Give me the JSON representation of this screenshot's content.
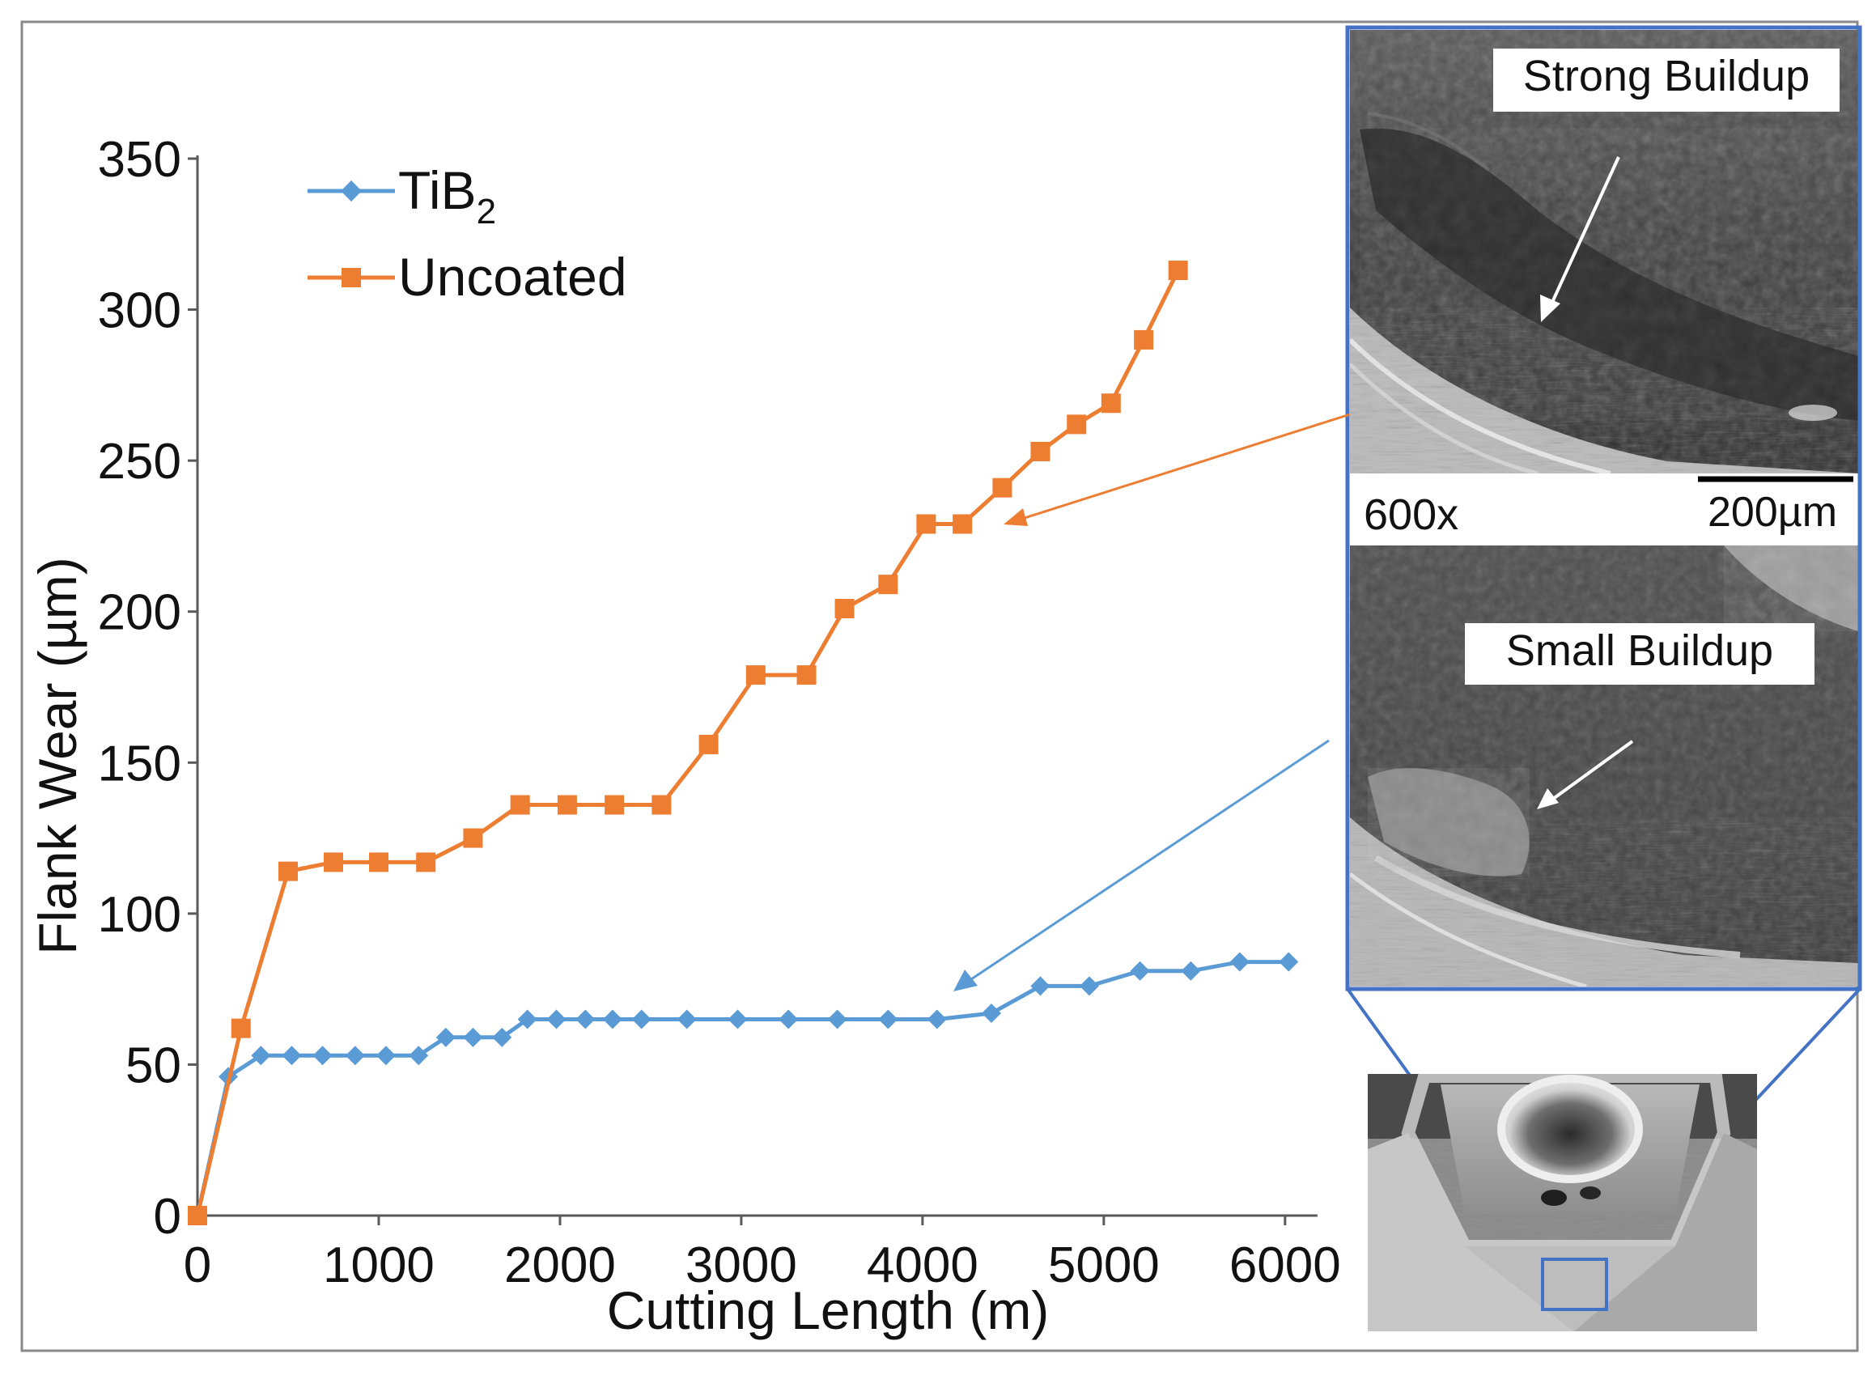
{
  "chart_data": {
    "type": "line",
    "title": "",
    "xlabel": "Cutting Length (m)",
    "ylabel": "Flank Wear (µm)",
    "xlim": [
      0,
      6300
    ],
    "ylim": [
      0,
      350
    ],
    "xticks": [
      0,
      1000,
      2000,
      3000,
      4000,
      5000,
      6000
    ],
    "yticks": [
      0,
      50,
      100,
      150,
      200,
      250,
      300,
      350
    ],
    "grid": false,
    "legend_position": "top-left",
    "series": [
      {
        "name_base": "TiB",
        "name_sub": "2",
        "color": "#5B9BD5",
        "marker": "diamond",
        "x": [
          0,
          170,
          350,
          520,
          690,
          870,
          1040,
          1220,
          1370,
          1520,
          1680,
          1820,
          1980,
          2140,
          2290,
          2450,
          2700,
          2980,
          3260,
          3530,
          3810,
          4080,
          4380,
          4650,
          4920,
          5200,
          5480,
          5750,
          6020
        ],
        "y": [
          0,
          46,
          53,
          53,
          53,
          53,
          53,
          53,
          59,
          59,
          59,
          65,
          65,
          65,
          65,
          65,
          65,
          65,
          65,
          65,
          65,
          65,
          67,
          76,
          76,
          81,
          81,
          84,
          84
        ]
      },
      {
        "name": "Uncoated",
        "color": "#ED7D31",
        "marker": "square",
        "x": [
          0,
          240,
          500,
          750,
          1000,
          1260,
          1520,
          1780,
          2040,
          2300,
          2560,
          2820,
          3080,
          3360,
          3570,
          3810,
          4020,
          4220,
          4440,
          4650,
          4850,
          5040,
          5220,
          5410
        ],
        "y": [
          0,
          62,
          114,
          117,
          117,
          117,
          125,
          136,
          136,
          136,
          136,
          156,
          179,
          179,
          201,
          209,
          229,
          229,
          241,
          253,
          262,
          269,
          290,
          313
        ]
      }
    ],
    "annotations": {
      "top_image_label": "Strong Buildup",
      "bottom_image_label": "Small Buildup",
      "magnification": "600x",
      "scale_bar": "200µm"
    }
  }
}
